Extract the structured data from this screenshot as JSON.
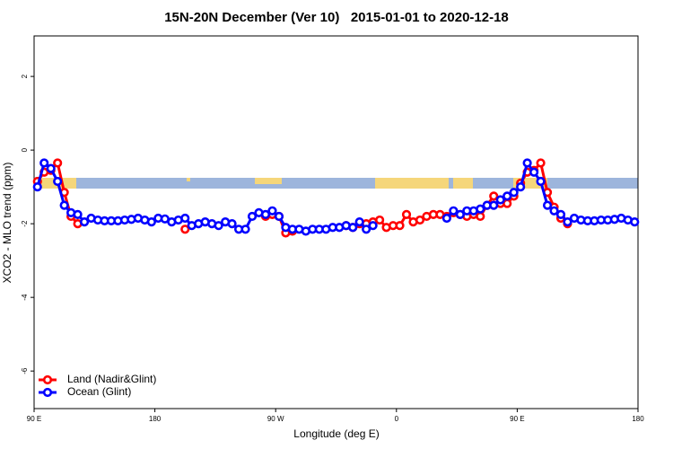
{
  "chart_data": {
    "type": "line",
    "title": "15N-20N December (Ver 10)   2015-01-01 to 2020-12-18",
    "xlabel": "Longitude (deg E)",
    "ylabel": "XCO2 - MLO trend (ppm)",
    "x": [
      92.5,
      97.5,
      102.5,
      107.5,
      112.5,
      117.5,
      122.5,
      127.5,
      132.5,
      137.5,
      142.5,
      147.5,
      152.5,
      157.5,
      162.5,
      167.5,
      172.5,
      177.5,
      182.5,
      187.5,
      192.5,
      197.5,
      202.5,
      207.5,
      212.5,
      217.5,
      222.5,
      227.5,
      232.5,
      237.5,
      242.5,
      247.5,
      252.5,
      257.5,
      262.5,
      267.5,
      272.5,
      277.5,
      282.5,
      287.5,
      292.5,
      297.5,
      302.5,
      307.5,
      312.5,
      317.5,
      322.5,
      327.5,
      332.5,
      337.5,
      342.5,
      347.5,
      352.5,
      357.5,
      362.5,
      367.5,
      372.5,
      377.5,
      382.5,
      387.5,
      392.5,
      397.5,
      402.5,
      407.5,
      412.5,
      417.5,
      422.5,
      427.5,
      432.5,
      437.5,
      442.5,
      447.5,
      452.5,
      457.5,
      462.5,
      467.5,
      472.5,
      477.5,
      482.5,
      487.5,
      492.5,
      497.5,
      502.5,
      507.5,
      512.5,
      517.5,
      522.5,
      527.5,
      532.5,
      537.5
    ],
    "series": [
      {
        "name": "Land (Nadir&Glint)",
        "color": "#ff0000",
        "values": [
          -0.85,
          -0.6,
          -0.55,
          -0.35,
          -1.15,
          -1.8,
          -2.0,
          null,
          null,
          null,
          null,
          null,
          null,
          null,
          null,
          null,
          null,
          null,
          null,
          null,
          null,
          null,
          -2.15,
          null,
          null,
          null,
          null,
          null,
          null,
          null,
          null,
          null,
          null,
          null,
          -1.8,
          -1.75,
          -1.8,
          -2.25,
          -2.2,
          null,
          null,
          null,
          null,
          null,
          null,
          null,
          -2.05,
          -2.1,
          -2.0,
          -2.0,
          -1.95,
          -1.9,
          -2.1,
          -2.05,
          -2.05,
          -1.75,
          -1.95,
          -1.9,
          -1.8,
          -1.75,
          -1.75,
          -1.8,
          -1.7,
          -1.75,
          -1.8,
          -1.75,
          -1.8,
          -1.5,
          -1.25,
          -1.45,
          -1.45,
          -1.25,
          -0.9,
          -0.6,
          -0.55,
          -0.35,
          -1.15,
          -1.55,
          -1.85,
          -2.0,
          null,
          null,
          null,
          null,
          null,
          null,
          null,
          null,
          null,
          null
        ]
      },
      {
        "name": "Ocean (Glint)",
        "color": "#0000ff",
        "values": [
          -1.0,
          -0.35,
          -0.5,
          -0.85,
          -1.5,
          -1.7,
          -1.75,
          -1.95,
          -1.85,
          -1.9,
          -1.92,
          -1.92,
          -1.92,
          -1.9,
          -1.88,
          -1.85,
          -1.9,
          -1.95,
          -1.85,
          -1.87,
          -1.95,
          -1.9,
          -1.85,
          -2.05,
          -2.0,
          -1.95,
          -2.0,
          -2.05,
          -1.95,
          -2.0,
          -2.15,
          -2.15,
          -1.8,
          -1.7,
          -1.75,
          -1.65,
          -1.8,
          -2.1,
          -2.15,
          -2.15,
          -2.2,
          -2.15,
          -2.15,
          -2.15,
          -2.1,
          -2.1,
          -2.05,
          -2.1,
          -1.95,
          -2.15,
          -2.05,
          null,
          null,
          null,
          null,
          null,
          null,
          null,
          null,
          null,
          null,
          -1.85,
          -1.65,
          -1.75,
          -1.65,
          -1.65,
          -1.6,
          -1.5,
          -1.5,
          -1.35,
          -1.25,
          -1.15,
          -1.0,
          -0.35,
          -0.6,
          -0.85,
          -1.5,
          -1.65,
          -1.75,
          -1.95,
          -1.85,
          -1.9,
          -1.92,
          -1.92,
          -1.9,
          -1.9,
          -1.88,
          -1.85,
          -1.9,
          -1.95
        ]
      }
    ],
    "xlim": [
      90,
      540
    ],
    "xticks": [
      {
        "value": 90,
        "label": "90 E"
      },
      180,
      {
        "value": 270,
        "label": "90 W"
      },
      {
        "value": 360,
        "label": "0"
      },
      {
        "value": 450,
        "label": "90 E"
      },
      {
        "value": 540,
        "label": "180"
      }
    ],
    "ylim": [
      -7.02,
      3.1
    ],
    "yticks": [
      2,
      0,
      -2,
      -4,
      -6
    ],
    "legend": "bottom-left"
  }
}
